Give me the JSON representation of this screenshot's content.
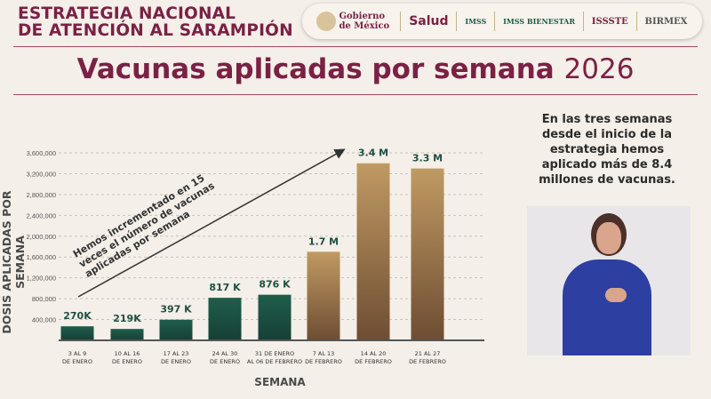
{
  "header": {
    "line1": "ESTRATEGIA NACIONAL",
    "line2": "DE ATENCIÓN AL SARAMPIÓN"
  },
  "logos": [
    "Gobierno de México",
    "Salud",
    "IMSS",
    "IMSS BIENESTAR",
    "ISSSTE",
    "BIRMEX"
  ],
  "title": {
    "main": "Vacunas aplicadas por semana",
    "year": "2026"
  },
  "side_text": "En las tres semanas desde el inicio de la estrategia hemos aplicado más de 8.4 millones de vacunas.",
  "chart_data": {
    "type": "bar",
    "xlabel": "SEMANA",
    "ylabel": "DOSIS APLICADAS POR SEMANA",
    "ylim": [
      0,
      3600000
    ],
    "yticks": [
      "400,000",
      "800,000",
      "1,200,000",
      "1,600,000",
      "2,000,000",
      "2,400,000",
      "2,800,000",
      "3,200,000",
      "3,600,000"
    ],
    "grid": true,
    "categories": [
      [
        "3 AL 9",
        "DE ENERO"
      ],
      [
        "10 AL 16",
        "DE ENERO"
      ],
      [
        "17 AL 23",
        "DE ENERO"
      ],
      [
        "24 AL 30",
        "DE ENERO"
      ],
      [
        "31 DE ENERO",
        "AL 06 DE FEBRERO"
      ],
      [
        "7 AL 13",
        "DE FEBRERO"
      ],
      [
        "14 AL 20",
        "DE FEBRERO"
      ],
      [
        "21 AL 27",
        "DE FEBRERO"
      ]
    ],
    "values": [
      270000,
      219000,
      397000,
      817000,
      876000,
      1700000,
      3400000,
      3300000
    ],
    "data_labels": [
      "270K",
      "219K",
      "397 K",
      "817 K",
      "876 K",
      "1.7 M",
      "3.4 M",
      "3.3 M"
    ],
    "annotation": "Hemos incrementado en 15 veces el número de vacunas aplicadas por semana",
    "colors": {
      "green": "#1d5a48",
      "gold": "#b58b55",
      "label": "#1e4f45"
    }
  }
}
